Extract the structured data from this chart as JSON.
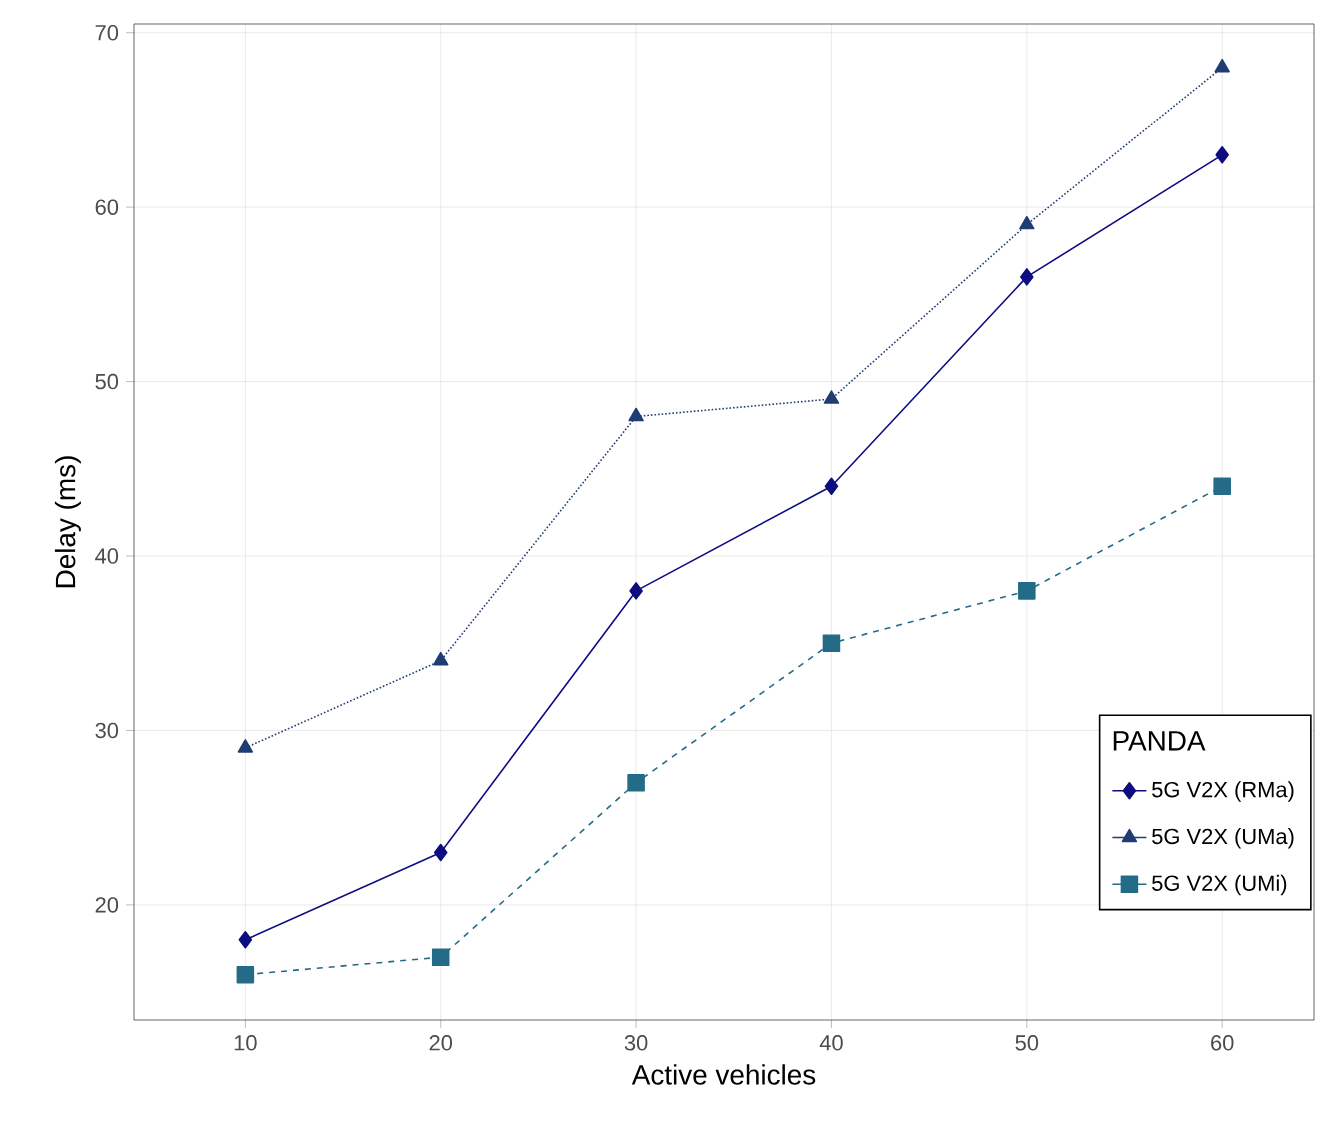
{
  "chart_data": {
    "type": "line",
    "xlabel": "Active vehicles",
    "ylabel": "Delay (ms)",
    "legend_title": "PANDA",
    "x": [
      10,
      20,
      30,
      40,
      50,
      60
    ],
    "series": [
      {
        "name": "5G V2X (RMa)",
        "color": "#0d0d80",
        "values": [
          18,
          23,
          38,
          44,
          56,
          63
        ],
        "marker": "diamond",
        "line_style": "solid"
      },
      {
        "name": "5G V2X (UMa)",
        "color": "#1f3d73",
        "values": [
          29,
          34,
          48,
          49,
          59,
          68
        ],
        "marker": "triangle",
        "line_style": "dotted"
      },
      {
        "name": "5G V2X (UMi)",
        "color": "#246b87",
        "values": [
          16,
          17,
          27,
          35,
          38,
          44
        ],
        "marker": "square",
        "line_style": "dashed"
      }
    ],
    "xlim": [
      4.3,
      64.7
    ],
    "ylim": [
      13.4,
      70.5
    ],
    "xticks": [
      10,
      20,
      30,
      40,
      50,
      60
    ],
    "yticks": [
      20,
      30,
      40,
      50,
      60,
      70
    ],
    "grid": true,
    "legend": "bottom right"
  }
}
